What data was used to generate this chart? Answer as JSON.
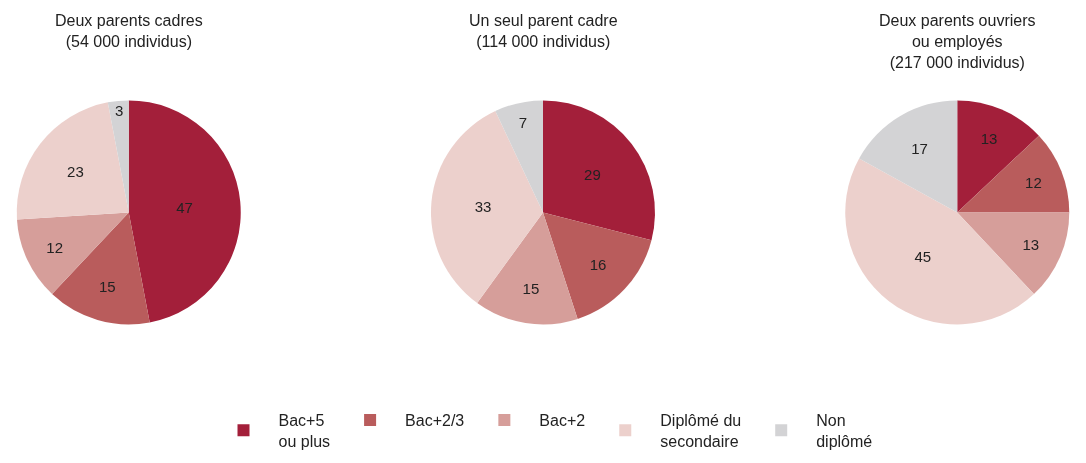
{
  "chart_data": [
    {
      "type": "pie",
      "title": "Deux parents cadres\n(54 000 individus)",
      "categories": [
        "Bac+5\nou plus",
        "Bac+2/3",
        "Bac+2",
        "Diplômé du\nsecondaire",
        "Non\ndiplômé"
      ],
      "values": [
        47,
        15,
        12,
        23,
        3
      ],
      "colors": [
        "#a31f3a",
        "#b95c5c",
        "#d69e9a",
        "#ecd0cc",
        "#d3d3d5"
      ],
      "data_labels": true,
      "legend": "bottom"
    },
    {
      "type": "pie",
      "title": "Un seul parent cadre\n(114 000 individus)",
      "categories": [
        null,
        null,
        null,
        null,
        null
      ],
      "values": [
        29,
        16,
        15,
        33,
        7
      ],
      "colors": [
        "#a31f3a",
        "#b95c5c",
        "#d69e9a",
        "#ecd0cc",
        "#d3d3d5"
      ],
      "data_labels": true
    },
    {
      "type": "pie",
      "title": "Deux parents ouvriers\nou employés\n(217 000 individus)",
      "categories": [
        null,
        null,
        null,
        null,
        null
      ],
      "values": [
        13,
        12,
        13,
        45,
        17
      ],
      "colors": [
        "#a31f3a",
        "#b95c5c",
        "#d69e9a",
        "#ecd0cc",
        "#d3d3d5"
      ],
      "data_labels": true
    }
  ]
}
